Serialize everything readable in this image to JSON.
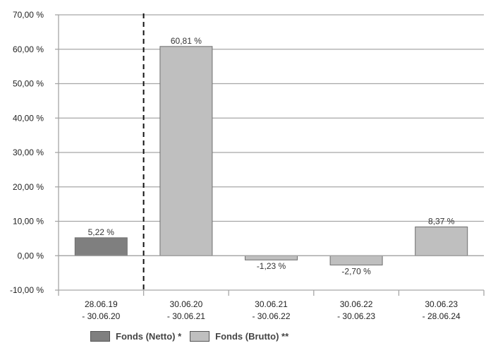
{
  "chart_data": {
    "type": "bar",
    "ylim": [
      -10,
      70
    ],
    "yticks": [
      "-10,00 %",
      "0,00 %",
      "10,00 %",
      "20,00 %",
      "30,00 %",
      "40,00 %",
      "50,00 %",
      "60,00 %",
      "70,00 %"
    ],
    "ytick_values": [
      -10,
      0,
      10,
      20,
      30,
      40,
      50,
      60,
      70
    ],
    "categories": [
      [
        "28.06.19",
        "- 30.06.20"
      ],
      [
        "30.06.20",
        "- 30.06.21"
      ],
      [
        "30.06.21",
        "- 30.06.22"
      ],
      [
        "30.06.22",
        "- 30.06.23"
      ],
      [
        "30.06.23",
        "- 28.06.24"
      ]
    ],
    "values": [
      5.22,
      60.81,
      -1.23,
      -2.7,
      8.37
    ],
    "value_labels": [
      "5,22 %",
      "60,81 %",
      "-1,23 %",
      "-2,70 %",
      "8,37 %"
    ],
    "series_of_bar": [
      0,
      1,
      1,
      1,
      1
    ],
    "series": [
      {
        "name": "Fonds (Netto) *",
        "color": "#7f7f7f"
      },
      {
        "name": "Fonds (Brutto) **",
        "color": "#bfbfbf"
      }
    ],
    "grid": true,
    "divider": "dashed line between first and second category",
    "legend_position": "bottom"
  }
}
